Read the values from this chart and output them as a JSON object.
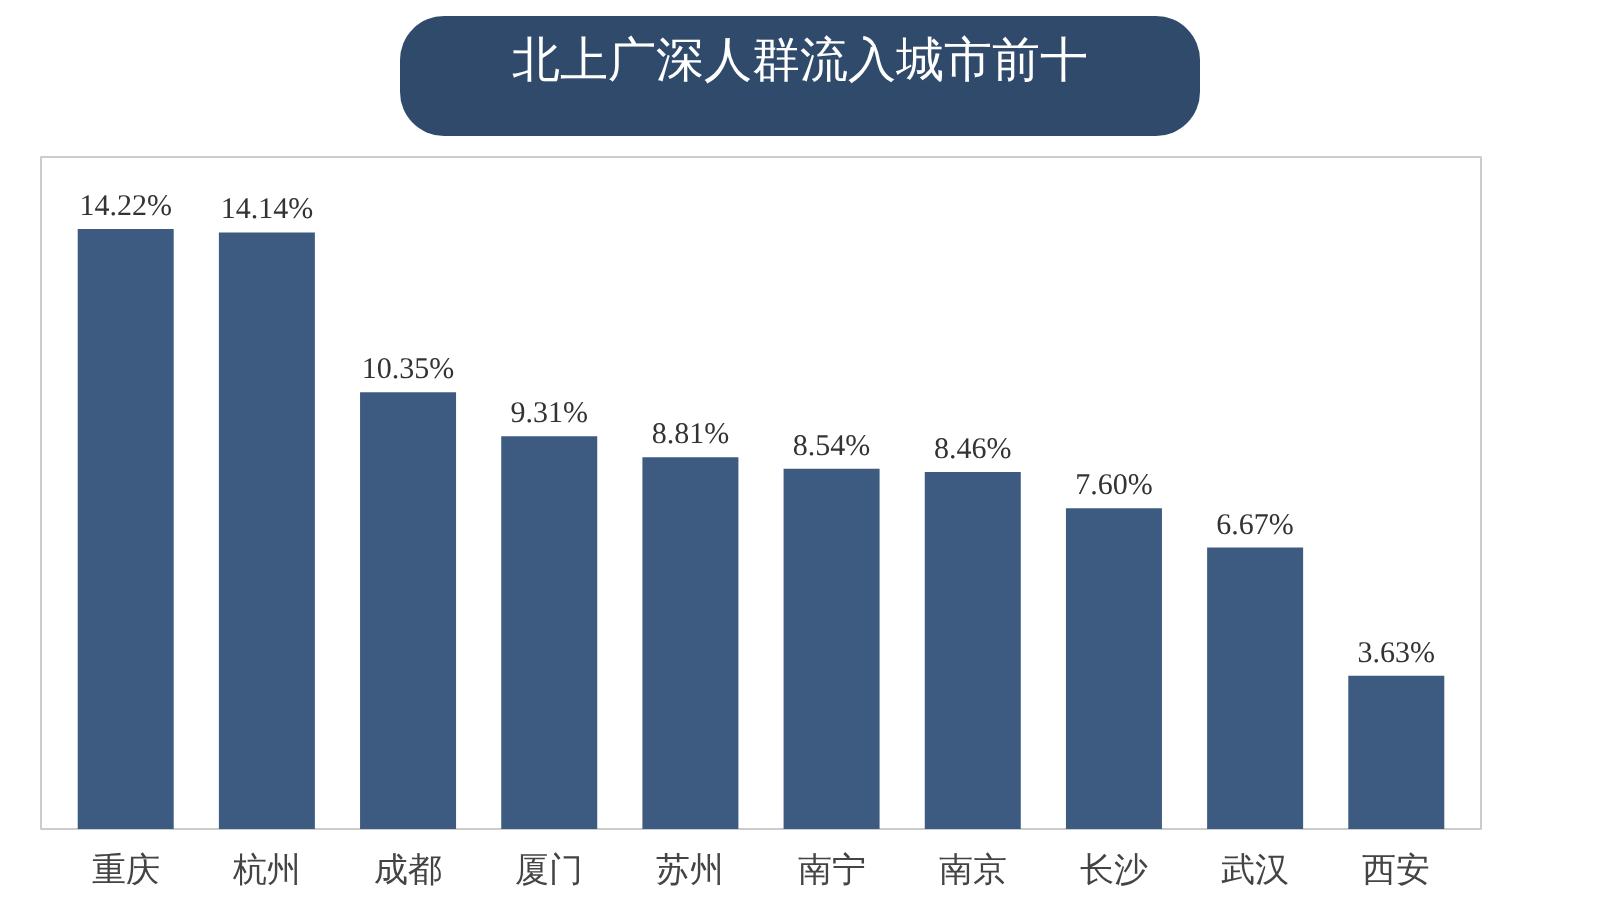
{
  "chart_data": {
    "type": "bar",
    "title": "北上广深人群流入城市前十",
    "categories": [
      "重庆",
      "杭州",
      "成都",
      "厦门",
      "苏州",
      "南宁",
      "南京",
      "长沙",
      "武汉",
      "西安"
    ],
    "values": [
      14.22,
      14.14,
      10.35,
      9.31,
      8.81,
      8.54,
      8.46,
      7.6,
      6.67,
      3.63
    ],
    "value_labels": [
      "14.22%",
      "14.14%",
      "10.35%",
      "9.31%",
      "8.81%",
      "8.54%",
      "8.46%",
      "7.60%",
      "6.67%",
      "3.63%"
    ],
    "color": "#3d5a80",
    "grid": false
  }
}
